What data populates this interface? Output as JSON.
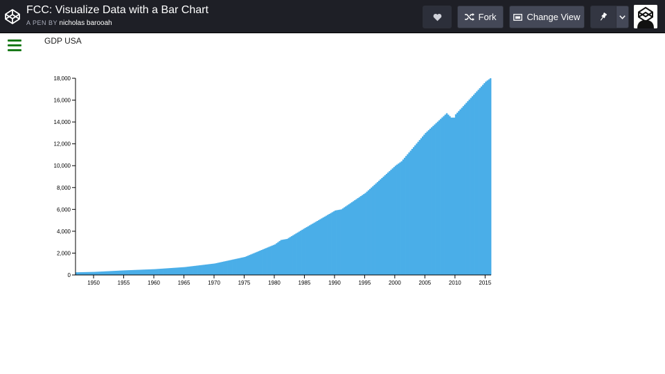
{
  "header": {
    "title": "FCC: Visualize Data with a Bar Chart",
    "byline_prefix": "A PEN BY",
    "author": "nicholas barooah",
    "fork_label": "Fork",
    "change_view_label": "Change View",
    "heart_icon": "heart-icon",
    "fork_icon": "fork-icon",
    "view_icon": "layout-icon",
    "pin_icon": "pin-icon",
    "dropdown_icon": "chevron-down-icon"
  },
  "page": {
    "menu_icon": "hamburger-menu-icon",
    "heading": "GDP USA"
  },
  "colors": {
    "bar": "#4aaee8",
    "header_bg": "#1e1f26",
    "menu": "#1a7a1a"
  },
  "chart_data": {
    "type": "bar",
    "title": "",
    "xlabel": "",
    "ylabel": "",
    "x_domain": [
      1947.0,
      2015.75
    ],
    "xlim": [
      1947.0,
      2016.0
    ],
    "ylim": [
      0,
      18000
    ],
    "y_ticks": [
      0,
      2000,
      4000,
      6000,
      8000,
      10000,
      12000,
      14000,
      16000,
      18000
    ],
    "y_tick_labels": [
      "0",
      "2,000",
      "4,000",
      "6,000",
      "8,000",
      "10,000",
      "12,000",
      "14,000",
      "16,000",
      "18,000"
    ],
    "x_ticks": [
      1950,
      1955,
      1960,
      1965,
      1970,
      1975,
      1980,
      1985,
      1990,
      1995,
      2000,
      2005,
      2010,
      2015
    ],
    "bar_interval": "quarter",
    "grid": false,
    "legend": "none",
    "series": [
      {
        "x": [
          1947,
          1950,
          1955,
          1960,
          1965,
          1970,
          1975,
          1980,
          1981,
          1982,
          1985,
          1990,
          1991,
          1995,
          2000,
          2001,
          2005,
          2008.5,
          2009.25,
          2009.75,
          2010,
          2015,
          2015.75
        ],
        "values": [
          243,
          280,
          420,
          530,
          720,
          1050,
          1650,
          2800,
          3200,
          3300,
          4300,
          5900,
          6000,
          7500,
          10000,
          10400,
          13000,
          14800,
          14400,
          14400,
          14700,
          17700,
          18000
        ]
      }
    ]
  }
}
